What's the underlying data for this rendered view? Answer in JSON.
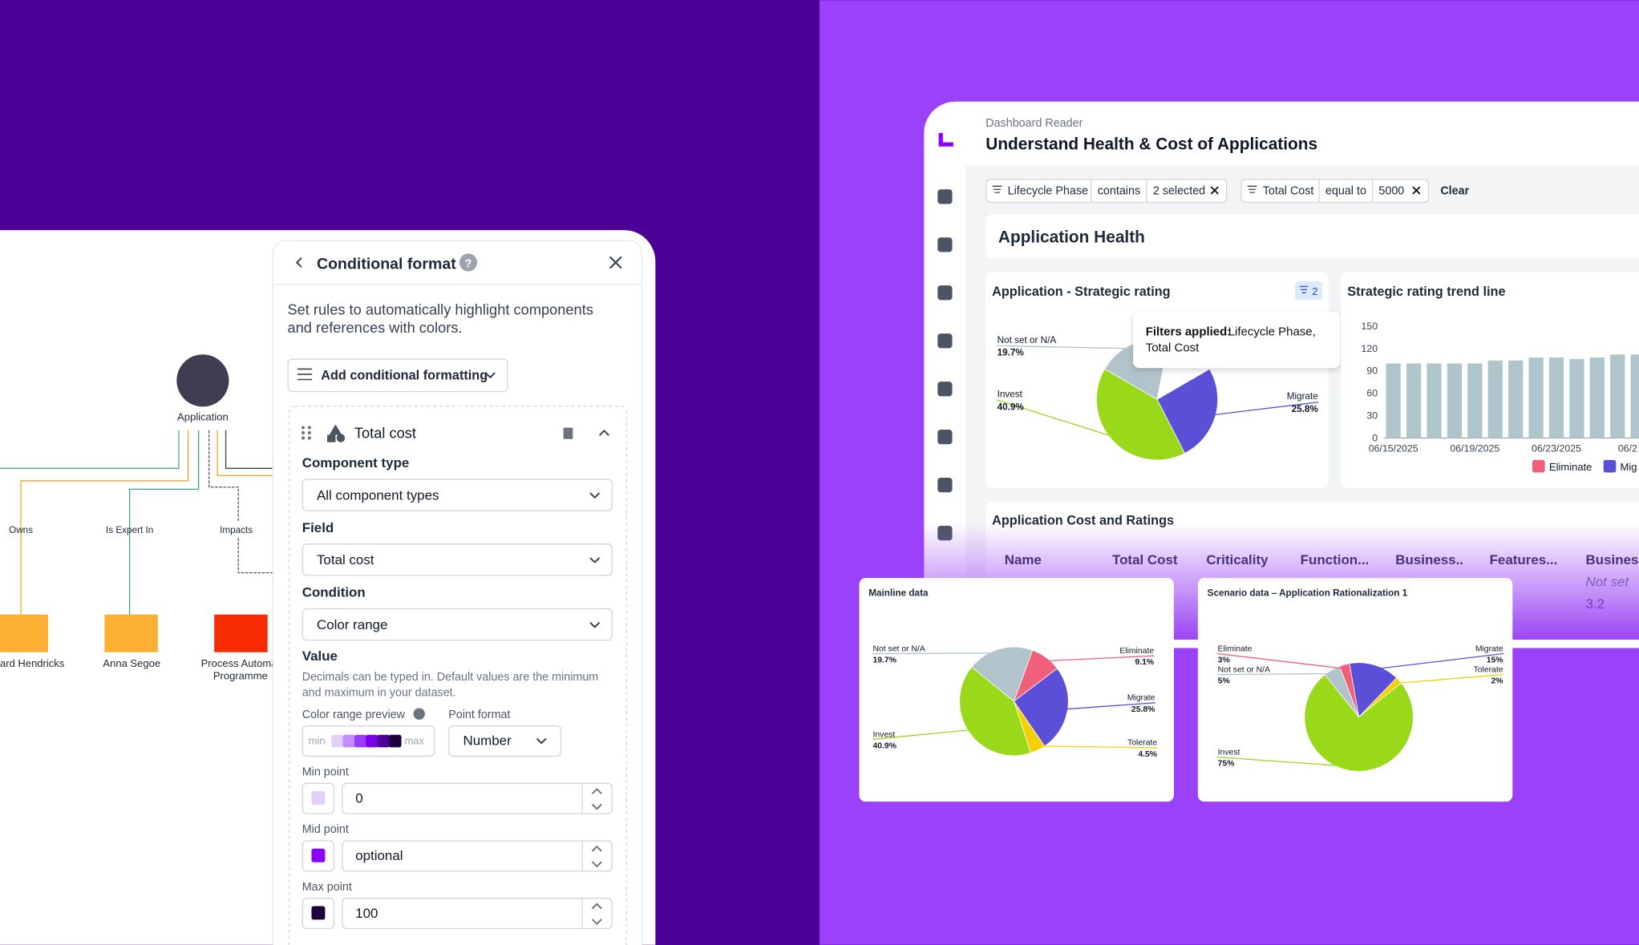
{
  "canvas": {
    "node": "Application",
    "edge_labels": [
      "Owns",
      "Is Expert In",
      "Impacts"
    ],
    "targets": [
      [
        "ard Hendricks"
      ],
      [
        "Anna Segoe"
      ],
      [
        "Process Automat",
        "Programme"
      ]
    ]
  },
  "format_panel": {
    "title": "Conditional format",
    "help": "?",
    "description": [
      "Set rules to automatically highlight components",
      "and references with colors."
    ],
    "add_button": "Add conditional formatting",
    "rule": {
      "name": "Total cost",
      "component_type_label": "Component type",
      "component_type": "All component types",
      "field_label": "Field",
      "field": "Total cost",
      "condition_label": "Condition",
      "condition": "Color range",
      "value_label": "Value",
      "value_hint": [
        "Decimals can be typed in. Default values are the minimum",
        "and maximum in your dataset."
      ],
      "preview_label": "Color range preview",
      "preview_min": "min",
      "preview_max": "max",
      "point_format_label": "Point format",
      "point_format": "Number",
      "min_label": "Min point",
      "min_value": "0",
      "mid_label": "Mid point",
      "mid_value": "optional",
      "max_label": "Max point",
      "max_value": "100"
    }
  },
  "dashboard": {
    "breadcrumb": "Dashboard Reader",
    "title": "Understand Health & Cost of Applications",
    "filters": [
      {
        "field": "Lifecycle Phase",
        "op": "contains",
        "value": "2 selected"
      },
      {
        "field": "Total Cost",
        "op": "equal to",
        "value": "5000"
      }
    ],
    "clear": "Clear",
    "section": "Application Health",
    "rating_pie": {
      "type": "pie",
      "title": "Application - Strategic rating",
      "badge": "2",
      "categories": [
        "Migrate",
        "Invest",
        "Not set or N/A"
      ],
      "values": [
        25.8,
        40.9,
        19.7
      ],
      "value_labels": [
        "25.8%",
        "40.9%",
        "19.7%"
      ],
      "colors": [
        "#5b4fd8",
        "#9ad81a",
        "#b3c3cb"
      ],
      "tooltip": {
        "bold": "Filters applied:",
        "lines": [
          "Lifecycle Phase,",
          "Total Cost"
        ]
      }
    },
    "trend_chart": {
      "type": "bar",
      "title": "Strategic rating trend line",
      "categories": [
        "06/15/2025",
        null,
        null,
        null,
        "06/19/2025",
        null,
        null,
        null,
        "06/23/2025",
        null,
        null,
        null,
        "06/2"
      ],
      "values": [
        100,
        100,
        100,
        100,
        100,
        104,
        104,
        108,
        108,
        106,
        108,
        112,
        112
      ],
      "color": "#b0c4cc",
      "ylim": [
        0,
        150
      ],
      "yticks": [
        0,
        30,
        60,
        90,
        120,
        150
      ],
      "legend": [
        {
          "name": "Eliminate",
          "color": "#f0607a"
        },
        {
          "name": "Mig",
          "color": "#5b4fd8"
        }
      ]
    },
    "table": {
      "title": "Application Cost and Ratings",
      "headers": [
        "Name",
        "Total Cost",
        "Criticality",
        "Function...",
        "Business..",
        "Features...",
        "Business"
      ],
      "cells": [
        "Not set",
        "3.2"
      ]
    }
  },
  "mainline_pie": {
    "type": "pie",
    "title": "Mainline data",
    "categories": [
      "Eliminate",
      "Migrate",
      "Tolerate",
      "Invest",
      "Not set or N/A"
    ],
    "values": [
      9.1,
      25.8,
      4.5,
      40.9,
      19.7
    ],
    "value_labels": [
      "9.1%",
      "25.8%",
      "4.5%",
      "40.9%",
      "19.7%"
    ],
    "colors": [
      "#f0607a",
      "#5b4fd8",
      "#f5d000",
      "#9ad81a",
      "#b3c3cb"
    ]
  },
  "scenario_pie": {
    "type": "pie",
    "title": "Scenario data – Application Rationalization 1",
    "categories": [
      "Migrate",
      "Tolerate",
      "Invest",
      "Not set or N/A",
      "Eliminate"
    ],
    "values": [
      15,
      2,
      75,
      5,
      3
    ],
    "value_labels": [
      "15%",
      "2%",
      "75%",
      "5%",
      "3%"
    ],
    "colors": [
      "#5b4fd8",
      "#f5d000",
      "#9ad81a",
      "#b3c3cb",
      "#f0607a"
    ]
  }
}
